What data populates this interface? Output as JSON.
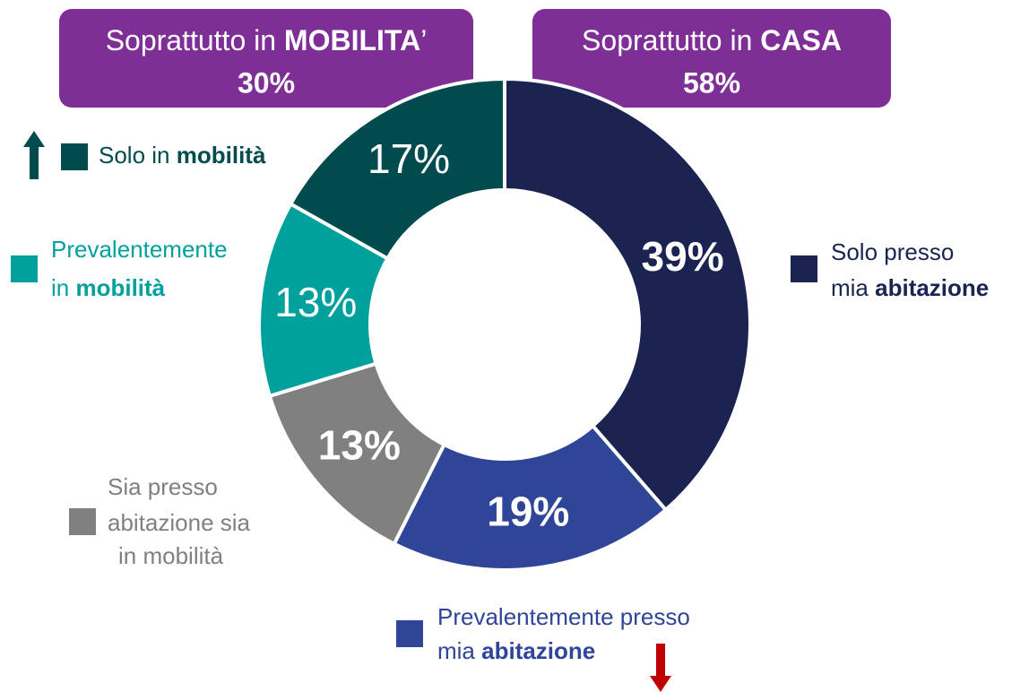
{
  "chart_data": {
    "type": "donut",
    "categories": [
      [
        [
          {
            "text": "Solo presso"
          }
        ],
        [
          {
            "text": "mia "
          },
          {
            "text": "abitazione",
            "bold": true
          }
        ]
      ],
      [
        [
          {
            "text": "Prevalentemente presso"
          }
        ],
        [
          {
            "text": "mia "
          },
          {
            "text": "abitazione",
            "bold": true
          }
        ]
      ],
      [
        [
          {
            "text": "Sia presso"
          }
        ],
        [
          {
            "text": "abitazione sia"
          }
        ],
        [
          {
            "text": "in mobilità"
          }
        ]
      ],
      [
        [
          {
            "text": "Prevalentemente"
          }
        ],
        [
          {
            "text": "in "
          },
          {
            "text": "mobilità",
            "bold": true
          }
        ]
      ],
      [
        [
          {
            "text": "Solo in "
          },
          {
            "text": "mobilità",
            "bold": true
          }
        ]
      ]
    ],
    "values": [
      39,
      19,
      13,
      13,
      17
    ],
    "value_labels": [
      "39%",
      "19%",
      "13%",
      "13%",
      "17%"
    ],
    "value_label_bold": [
      true,
      true,
      true,
      false,
      false
    ],
    "colors": [
      "#1b2450",
      "#2f4598",
      "#808080",
      "#00a09c",
      "#004b4d"
    ],
    "groups": [
      {
        "label": [
          {
            "text": "Soprattutto in "
          },
          {
            "text": "MOBILITA",
            "bold": true
          },
          {
            "text": "’"
          }
        ],
        "value": 30,
        "value_label": "30%"
      },
      {
        "label": [
          {
            "text": "Soprattutto in "
          },
          {
            "text": "CASA",
            "bold": true
          }
        ],
        "value": 58,
        "value_label": "58%"
      }
    ]
  }
}
